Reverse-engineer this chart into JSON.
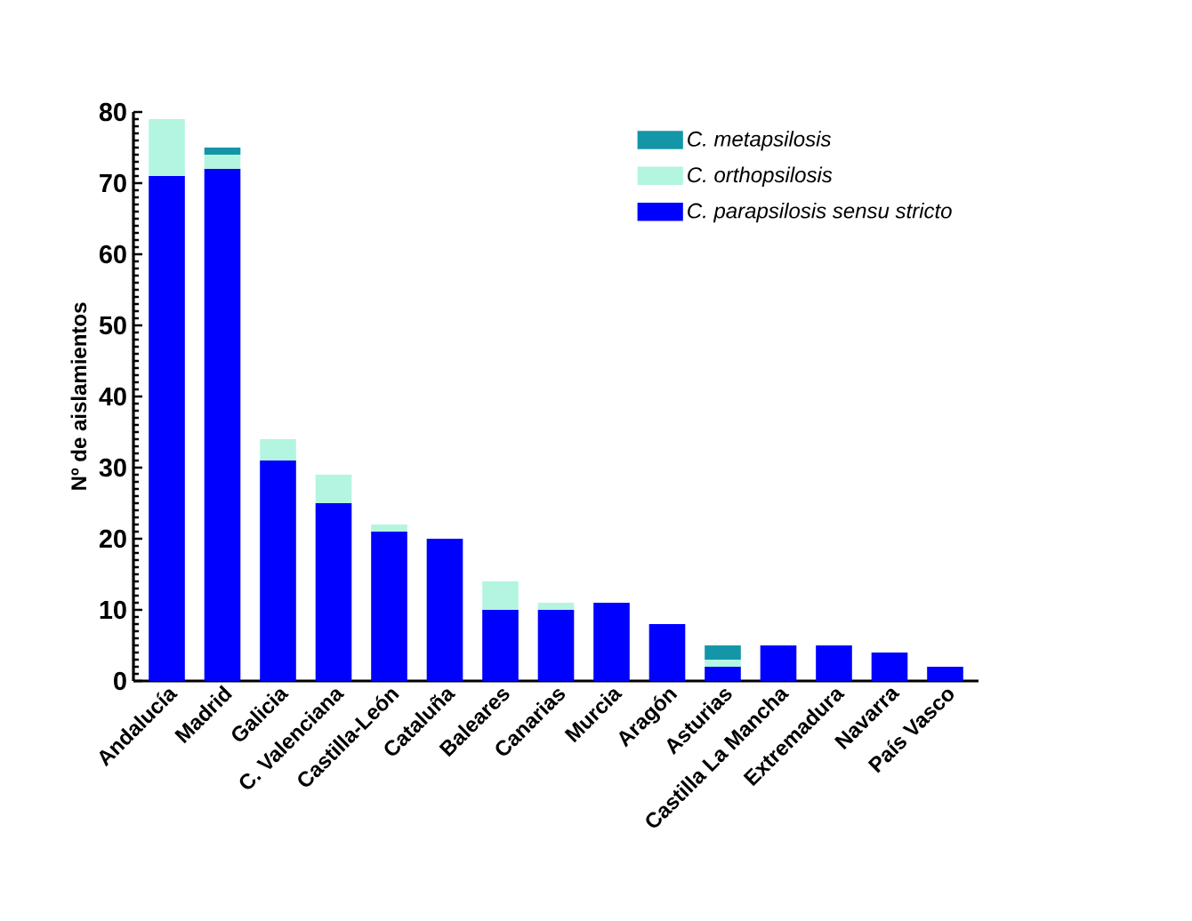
{
  "chart_data": {
    "type": "bar",
    "stacked": true,
    "ylabel": "Nº de aislamientos",
    "categories": [
      "Andalucía",
      "Madrid",
      "Galicia",
      "C. Valenciana",
      "Castilla-León",
      "Cataluña",
      "Baleares",
      "Canarias",
      "Murcia",
      "Aragón",
      "Asturias",
      "Castilla La Mancha",
      "Extremadura",
      "Navarra",
      "País Vasco"
    ],
    "series": [
      {
        "name": "C. parapsilosis sensu stricto",
        "color": "#0000ff",
        "values": [
          71,
          72,
          31,
          25,
          21,
          20,
          10,
          10,
          11,
          8,
          2,
          5,
          5,
          4,
          2
        ]
      },
      {
        "name": "C. orthopsilosis",
        "color": "#b3f5e0",
        "values": [
          8,
          2,
          3,
          4,
          1,
          0,
          4,
          1,
          0,
          0,
          1,
          0,
          0,
          0,
          0
        ]
      },
      {
        "name": "C. metapsilosis",
        "color": "#1495a8",
        "values": [
          0,
          1,
          0,
          0,
          0,
          0,
          0,
          0,
          0,
          0,
          2,
          0,
          0,
          0,
          0
        ]
      }
    ],
    "ylim": [
      0,
      80
    ],
    "yticks": [
      0,
      10,
      20,
      30,
      40,
      50,
      60,
      70,
      80
    ],
    "grid": false,
    "legend": "top right"
  }
}
